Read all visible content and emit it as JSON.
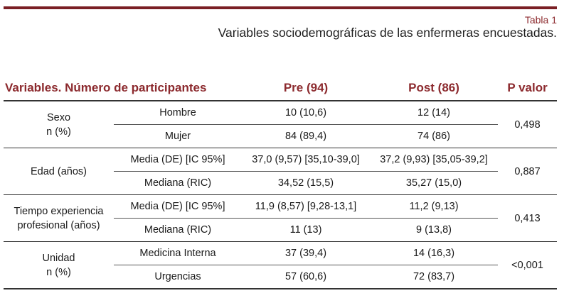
{
  "caption": {
    "label": "Tabla 1",
    "title": "Variables sociodemográficas de las enfermeras encuestadas."
  },
  "header": {
    "variable": "Variables. Número de participantes",
    "pre": "Pre (94)",
    "post": "Post (86)",
    "p_value": "P valor"
  },
  "groups": [
    {
      "label_line1": "Sexo",
      "label_line2": "n (%)",
      "p": "0,498",
      "rows": [
        {
          "sub": "Hombre",
          "pre": "10 (10,6)",
          "post": "12 (14)"
        },
        {
          "sub": "Mujer",
          "pre": "84 (89,4)",
          "post": "74 (86)"
        }
      ]
    },
    {
      "label_line1": "Edad (años)",
      "label_line2": "",
      "p": "0,887",
      "rows": [
        {
          "sub": "Media (DE) [IC 95%]",
          "pre": "37,0 (9,57) [35,10-39,0]",
          "post": "37,2 (9,93) [35,05-39,2]"
        },
        {
          "sub": "Mediana (RIC)",
          "pre": "34,52 (15,5)",
          "post": "35,27 (15,0)"
        }
      ]
    },
    {
      "label_line1": "Tiempo experiencia",
      "label_line2": "profesional (años)",
      "p": "0,413",
      "rows": [
        {
          "sub": "Media (DE) [IC 95%]",
          "pre": "11,9 (8,57) [9,28-13,1]",
          "post": "11,2 (9,13)"
        },
        {
          "sub": "Mediana (RIC)",
          "pre": "11 (13)",
          "post": "9 (13,8)"
        }
      ]
    },
    {
      "label_line1": "Unidad",
      "label_line2": "n (%)",
      "p": "<0,001",
      "rows": [
        {
          "sub": "Medicina Interna",
          "pre": "37 (39,4)",
          "post": "14 (16,3)"
        },
        {
          "sub": "Urgencias",
          "pre": "57 (60,6)",
          "post": "72 (83,7)"
        }
      ]
    }
  ]
}
